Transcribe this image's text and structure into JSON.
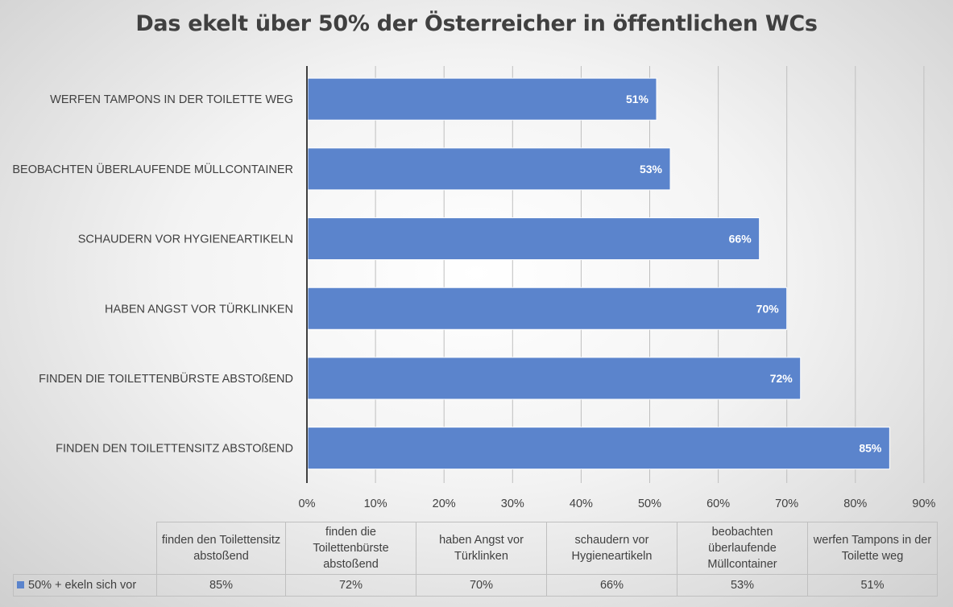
{
  "chart_data": {
    "type": "bar",
    "orientation": "horizontal",
    "title": "Das ekelt über 50% der Österreicher in öffentlichen WCs",
    "categories": [
      "FINDEN DEN TOILETTENSITZ ABSTOßEND",
      "FINDEN DIE TOILETTENBÜRSTE ABSTOßEND",
      "HABEN ANGST VOR TÜRKLINKEN",
      "SCHAUDERN VOR HYGIENEARTIKELN",
      "BEOBACHTEN ÜBERLAUFENDE MÜLLCONTAINER",
      "WERFEN TAMPONS IN DER TOILETTE WEG "
    ],
    "series": [
      {
        "name": "50% + ekeln sich vor",
        "values": [
          85,
          72,
          70,
          66,
          53,
          51
        ],
        "data_labels": [
          "85%",
          "72%",
          "70%",
          "66%",
          "53%",
          "51%"
        ],
        "color": "#5b84cc"
      }
    ],
    "xlim": [
      0,
      90
    ],
    "x_ticks": [
      "0%",
      "10%",
      "20%",
      "30%",
      "40%",
      "50%",
      "60%",
      "70%",
      "80%",
      "90%"
    ],
    "grid": true,
    "data_table": {
      "headers": [
        "finden den Toilettensitz abstoßend",
        "finden die Toilettenbürste abstoßend",
        "haben Angst vor Türklinken",
        "schaudern vor Hygieneartikeln",
        "beobachten überlaufende Müllcontainer",
        "werfen Tampons in der Toilette weg"
      ],
      "row_label": "50% + ekeln sich vor",
      "values": [
        "85%",
        "72%",
        "70%",
        "66%",
        "53%",
        "51%"
      ]
    }
  }
}
